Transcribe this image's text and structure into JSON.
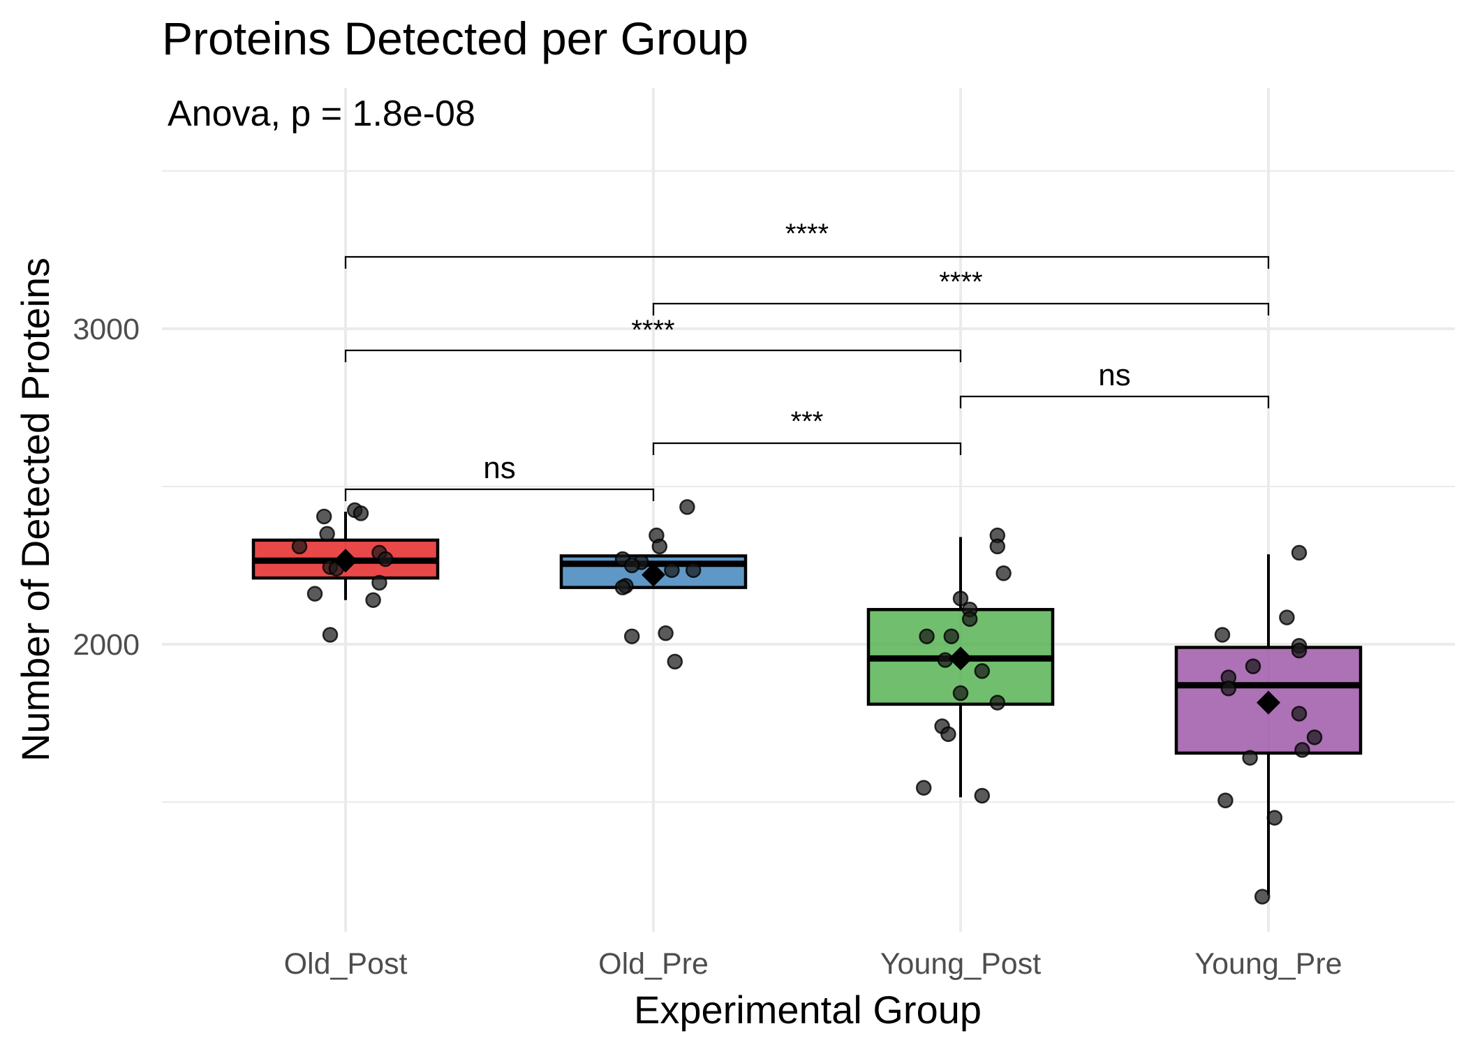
{
  "chart_data": {
    "type": "box",
    "title": "Proteins Detected per Group",
    "subtitle": "Anova, p = 1.8e-08",
    "xlabel": "Experimental Group",
    "ylabel": "Number of Detected Proteins",
    "ylim": [
      1090,
      3600
    ],
    "yticks": [
      2000,
      3000
    ],
    "ygrid_minor": [
      1500,
      2500,
      3500
    ],
    "grid": true,
    "categories": [
      "Old_Post",
      "Old_Pre",
      "Young_Post",
      "Young_Pre"
    ],
    "colors": [
      "#e41a1c",
      "#377eb8",
      "#4daf4a",
      "#984ea3"
    ],
    "boxes": [
      {
        "q1": 2210,
        "median": 2265,
        "q3": 2330,
        "whisker_low": 2140,
        "whisker_high": 2420,
        "mean": 2265
      },
      {
        "q1": 2180,
        "median": 2255,
        "q3": 2280,
        "whisker_low": 2180,
        "whisker_high": 2280,
        "mean": 2220
      },
      {
        "q1": 1810,
        "median": 1955,
        "q3": 2110,
        "whisker_low": 1515,
        "whisker_high": 2340,
        "mean": 1955
      },
      {
        "q1": 1655,
        "median": 1870,
        "q3": 1990,
        "whisker_low": 1205,
        "whisker_high": 2285,
        "mean": 1815
      }
    ],
    "points": [
      [
        [
          -0.07,
          2405
        ],
        [
          0.03,
          2425
        ],
        [
          0.05,
          2415
        ],
        [
          -0.06,
          2350
        ],
        [
          -0.15,
          2310
        ],
        [
          0.11,
          2290
        ],
        [
          0.13,
          2270
        ],
        [
          -0.05,
          2245
        ],
        [
          -0.03,
          2240
        ],
        [
          0.11,
          2195
        ],
        [
          -0.1,
          2160
        ],
        [
          0.09,
          2140
        ],
        [
          -0.05,
          2030
        ]
      ],
      [
        [
          0.11,
          2435
        ],
        [
          0.01,
          2345
        ],
        [
          0.02,
          2310
        ],
        [
          -0.1,
          2270
        ],
        [
          -0.04,
          2260
        ],
        [
          -0.07,
          2250
        ],
        [
          0.06,
          2235
        ],
        [
          0.13,
          2235
        ],
        [
          -0.09,
          2185
        ],
        [
          -0.1,
          2180
        ],
        [
          -0.07,
          2025
        ],
        [
          0.04,
          2035
        ],
        [
          0.07,
          1945
        ]
      ],
      [
        [
          0.12,
          2345
        ],
        [
          0.12,
          2310
        ],
        [
          0.14,
          2225
        ],
        [
          0.0,
          2145
        ],
        [
          0.03,
          2110
        ],
        [
          0.03,
          2080
        ],
        [
          -0.11,
          2025
        ],
        [
          -0.03,
          2025
        ],
        [
          -0.05,
          1950
        ],
        [
          0.07,
          1915
        ],
        [
          0.0,
          1845
        ],
        [
          0.12,
          1815
        ],
        [
          -0.06,
          1740
        ],
        [
          -0.04,
          1715
        ],
        [
          -0.12,
          1545
        ],
        [
          0.07,
          1520
        ]
      ],
      [
        [
          0.1,
          2290
        ],
        [
          0.06,
          2085
        ],
        [
          -0.15,
          2030
        ],
        [
          0.1,
          1995
        ],
        [
          0.1,
          1980
        ],
        [
          -0.05,
          1930
        ],
        [
          -0.13,
          1895
        ],
        [
          -0.13,
          1860
        ],
        [
          0.1,
          1780
        ],
        [
          0.15,
          1705
        ],
        [
          0.11,
          1665
        ],
        [
          -0.06,
          1640
        ],
        [
          -0.14,
          1505
        ],
        [
          0.02,
          1450
        ],
        [
          -0.02,
          1200
        ]
      ]
    ],
    "comparisons": [
      {
        "from": 0,
        "to": 1,
        "label": "ns"
      },
      {
        "from": 1,
        "to": 2,
        "label": "***"
      },
      {
        "from": 2,
        "to": 3,
        "label": "ns"
      },
      {
        "from": 0,
        "to": 2,
        "label": "****"
      },
      {
        "from": 1,
        "to": 3,
        "label": "****"
      },
      {
        "from": 0,
        "to": 3,
        "label": "****"
      }
    ]
  }
}
